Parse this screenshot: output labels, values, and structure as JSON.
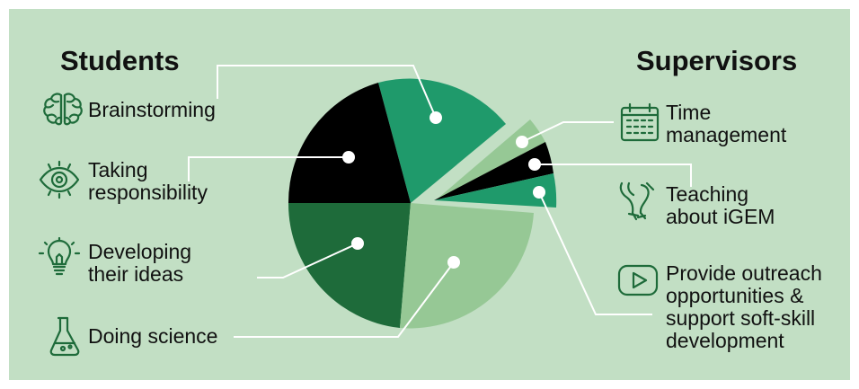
{
  "colors": {
    "background": "#c2dfc4",
    "medium_green": "#1f9a6b",
    "black": "#000000",
    "dark_green": "#1e6b3a",
    "light_green": "#96c895",
    "icon_green": "#1e6b3a",
    "leader": "#ffffff"
  },
  "students": {
    "heading": "Students",
    "items": [
      {
        "label": "Brainstorming",
        "icon": "brain-icon"
      },
      {
        "label": "Taking",
        "label2": "responsibility",
        "icon": "eye-icon"
      },
      {
        "label": "Developing",
        "label2": "their ideas",
        "icon": "lightbulb-icon"
      },
      {
        "label": "Doing science",
        "icon": "flask-icon"
      }
    ]
  },
  "supervisors": {
    "heading": "Supervisors",
    "items": [
      {
        "label": "Time",
        "label2": "management",
        "icon": "calendar-icon"
      },
      {
        "label": "Teaching",
        "label2": "about iGEM",
        "icon": "gene-construct-icon"
      },
      {
        "label": "Provide outreach",
        "label2": "opportunities &",
        "label3": "support soft-skill",
        "label4": "development",
        "icon": "video-play-icon"
      }
    ]
  }
}
